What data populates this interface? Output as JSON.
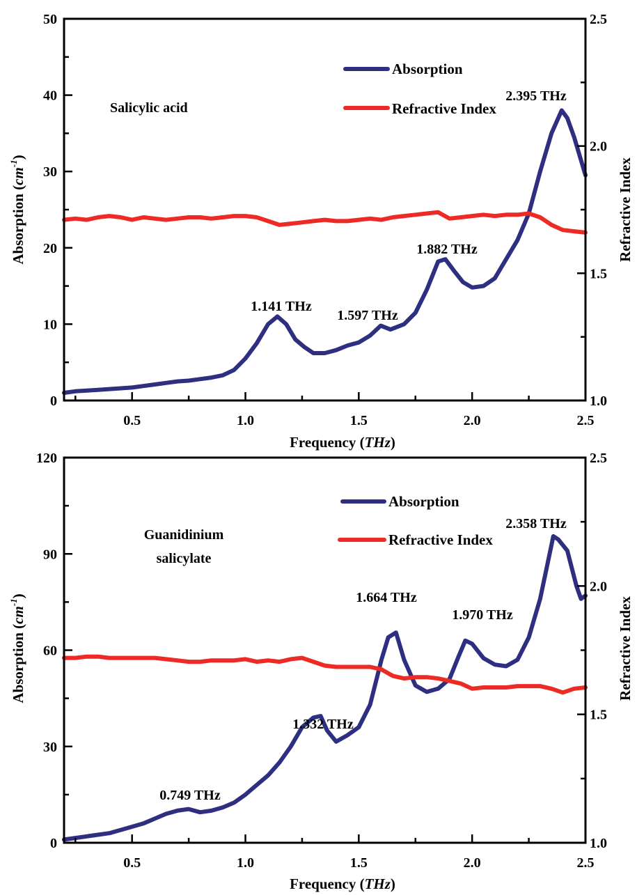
{
  "charts": [
    {
      "type": "line",
      "xlabel_main": "Frequency (",
      "xlabel_italic": "THz",
      "xlabel_end": ")",
      "ylabel_left_main": "Absorption (",
      "ylabel_left_unit": "cm",
      "ylabel_left_exp": "-1",
      "ylabel_left_end": ")",
      "ylabel_right": "Refractive Index",
      "sample_label_lines": [
        "Salicylic acid"
      ],
      "legend": [
        "Absorption",
        "Refractive Index"
      ],
      "x_ticks": [
        "0.5",
        "1.0",
        "1.5",
        "2.0",
        "2.5"
      ],
      "y_left_ticks": [
        "0",
        "10",
        "20",
        "30",
        "40",
        "50"
      ],
      "y_right_ticks": [
        "1.0",
        "1.5",
        "2.0",
        "2.5"
      ],
      "annotations": [
        {
          "text": "1.141 THz",
          "x": 1.141,
          "y": 11
        },
        {
          "text": "1.597 THz",
          "x": 1.597,
          "y": 9.8
        },
        {
          "text": "1.882 THz",
          "x": 1.882,
          "y": 18.5
        },
        {
          "text": "2.395 THz",
          "x": 2.395,
          "y": 38
        }
      ]
    },
    {
      "type": "line",
      "xlabel_main": "Frequency (",
      "xlabel_italic": "THz",
      "xlabel_end": ")",
      "ylabel_left_main": "Absorption (",
      "ylabel_left_unit": "cm",
      "ylabel_left_exp": "-1",
      "ylabel_left_end": ")",
      "ylabel_right": "Refractive Index",
      "sample_label_lines": [
        "Guanidinium",
        "salicylate"
      ],
      "legend": [
        "Absorption",
        "Refractive Index"
      ],
      "x_ticks": [
        "0.5",
        "1.0",
        "1.5",
        "2.0",
        "2.5"
      ],
      "y_left_ticks": [
        "0",
        "30",
        "60",
        "90",
        "120"
      ],
      "y_right_ticks": [
        "1.0",
        "1.5",
        "2.0",
        "2.5"
      ],
      "annotations": [
        {
          "text": "0.749 THz",
          "x": 0.749,
          "y": 10.5
        },
        {
          "text": "1.332 THz",
          "x": 1.332,
          "y": 39.5
        },
        {
          "text": "1.664 THz",
          "x": 1.664,
          "y": 65.5
        },
        {
          "text": "1.970 THz",
          "x": 1.97,
          "y": 63
        },
        {
          "text": "2.358 THz",
          "x": 2.358,
          "y": 95.5
        }
      ]
    }
  ],
  "colors": {
    "absorption": "#2e2f80",
    "refractive_index": "#ee2a24",
    "axis": "#000000"
  },
  "chart_data": [
    {
      "type": "line",
      "title": "",
      "xlabel": "Frequency (THz)",
      "ylabel": "Absorption (cm-1)",
      "ylabel_right": "Refractive Index",
      "xlim": [
        0.2,
        2.5
      ],
      "ylim": [
        0,
        50
      ],
      "ylim_right": [
        1.0,
        2.5
      ],
      "sample": "Salicylic acid",
      "series": [
        {
          "name": "Absorption",
          "axis": "left",
          "x": [
            0.2,
            0.25,
            0.3,
            0.35,
            0.4,
            0.45,
            0.5,
            0.55,
            0.6,
            0.65,
            0.7,
            0.75,
            0.8,
            0.85,
            0.9,
            0.95,
            1.0,
            1.05,
            1.1,
            1.141,
            1.18,
            1.22,
            1.26,
            1.3,
            1.35,
            1.4,
            1.45,
            1.5,
            1.55,
            1.597,
            1.64,
            1.7,
            1.75,
            1.8,
            1.85,
            1.882,
            1.92,
            1.96,
            2.0,
            2.05,
            2.1,
            2.15,
            2.2,
            2.25,
            2.3,
            2.35,
            2.395,
            2.42,
            2.45,
            2.5
          ],
          "values": [
            1.0,
            1.2,
            1.3,
            1.4,
            1.5,
            1.6,
            1.7,
            1.9,
            2.1,
            2.3,
            2.5,
            2.6,
            2.8,
            3.0,
            3.3,
            4.0,
            5.5,
            7.5,
            10.0,
            11.0,
            10.0,
            8.0,
            7.0,
            6.2,
            6.2,
            6.6,
            7.2,
            7.6,
            8.5,
            9.8,
            9.3,
            10.0,
            11.5,
            14.5,
            18.2,
            18.5,
            17.0,
            15.5,
            14.8,
            15.0,
            16.0,
            18.5,
            21.0,
            24.5,
            30.0,
            35.0,
            38.0,
            37.0,
            34.5,
            29.5
          ]
        },
        {
          "name": "Refractive Index",
          "axis": "right",
          "x": [
            0.2,
            0.25,
            0.3,
            0.35,
            0.4,
            0.45,
            0.5,
            0.55,
            0.6,
            0.65,
            0.7,
            0.75,
            0.8,
            0.85,
            0.9,
            0.95,
            1.0,
            1.05,
            1.1,
            1.15,
            1.2,
            1.25,
            1.3,
            1.35,
            1.4,
            1.45,
            1.5,
            1.55,
            1.6,
            1.65,
            1.7,
            1.75,
            1.8,
            1.85,
            1.9,
            1.95,
            2.0,
            2.05,
            2.1,
            2.15,
            2.2,
            2.25,
            2.3,
            2.35,
            2.4,
            2.45,
            2.5
          ],
          "values": [
            1.71,
            1.715,
            1.71,
            1.72,
            1.725,
            1.72,
            1.71,
            1.72,
            1.715,
            1.71,
            1.715,
            1.72,
            1.72,
            1.715,
            1.72,
            1.725,
            1.725,
            1.72,
            1.705,
            1.69,
            1.695,
            1.7,
            1.705,
            1.71,
            1.705,
            1.705,
            1.71,
            1.715,
            1.71,
            1.72,
            1.725,
            1.73,
            1.735,
            1.74,
            1.715,
            1.72,
            1.725,
            1.73,
            1.725,
            1.73,
            1.73,
            1.735,
            1.72,
            1.69,
            1.67,
            1.665,
            1.66
          ]
        }
      ]
    },
    {
      "type": "line",
      "title": "",
      "xlabel": "Frequency (THz)",
      "ylabel": "Absorption (cm-1)",
      "ylabel_right": "Refractive Index",
      "xlim": [
        0.2,
        2.5
      ],
      "ylim": [
        0,
        120
      ],
      "ylim_right": [
        1.0,
        2.5
      ],
      "sample": "Guanidinium salicylate",
      "series": [
        {
          "name": "Absorption",
          "axis": "left",
          "x": [
            0.2,
            0.25,
            0.3,
            0.35,
            0.4,
            0.45,
            0.5,
            0.55,
            0.6,
            0.65,
            0.7,
            0.749,
            0.8,
            0.85,
            0.9,
            0.95,
            1.0,
            1.05,
            1.1,
            1.15,
            1.2,
            1.25,
            1.3,
            1.332,
            1.36,
            1.4,
            1.45,
            1.5,
            1.55,
            1.6,
            1.63,
            1.664,
            1.7,
            1.75,
            1.8,
            1.85,
            1.9,
            1.94,
            1.97,
            2.0,
            2.05,
            2.1,
            2.15,
            2.2,
            2.25,
            2.3,
            2.358,
            2.38,
            2.42,
            2.46,
            2.48,
            2.5
          ],
          "values": [
            1.0,
            1.5,
            2.0,
            2.5,
            3.0,
            4.0,
            5.0,
            6.0,
            7.5,
            9.0,
            10.0,
            10.5,
            9.5,
            10.0,
            11.0,
            12.5,
            15.0,
            18.0,
            21.0,
            25.0,
            30.0,
            36.0,
            39.0,
            39.5,
            35.0,
            31.5,
            33.5,
            36.0,
            43.0,
            57.0,
            64.0,
            65.5,
            57.0,
            49.0,
            47.0,
            48.0,
            51.0,
            58.0,
            63.0,
            62.0,
            57.5,
            55.5,
            55.0,
            57.0,
            64.0,
            76.0,
            95.5,
            94.5,
            91.0,
            80.0,
            76.0,
            77.0
          ]
        },
        {
          "name": "Refractive Index",
          "axis": "right",
          "x": [
            0.2,
            0.25,
            0.3,
            0.35,
            0.4,
            0.45,
            0.5,
            0.55,
            0.6,
            0.65,
            0.7,
            0.75,
            0.8,
            0.85,
            0.9,
            0.95,
            1.0,
            1.05,
            1.1,
            1.15,
            1.2,
            1.25,
            1.3,
            1.35,
            1.4,
            1.45,
            1.5,
            1.55,
            1.6,
            1.65,
            1.7,
            1.75,
            1.8,
            1.85,
            1.9,
            1.95,
            2.0,
            2.05,
            2.1,
            2.15,
            2.2,
            2.25,
            2.3,
            2.35,
            2.4,
            2.45,
            2.5
          ],
          "values": [
            1.72,
            1.72,
            1.725,
            1.725,
            1.72,
            1.72,
            1.72,
            1.72,
            1.72,
            1.715,
            1.71,
            1.705,
            1.705,
            1.71,
            1.71,
            1.71,
            1.715,
            1.705,
            1.71,
            1.705,
            1.715,
            1.72,
            1.705,
            1.69,
            1.685,
            1.685,
            1.685,
            1.685,
            1.675,
            1.65,
            1.64,
            1.645,
            1.645,
            1.64,
            1.63,
            1.62,
            1.6,
            1.605,
            1.605,
            1.605,
            1.61,
            1.61,
            1.61,
            1.6,
            1.585,
            1.6,
            1.605
          ]
        }
      ]
    }
  ]
}
